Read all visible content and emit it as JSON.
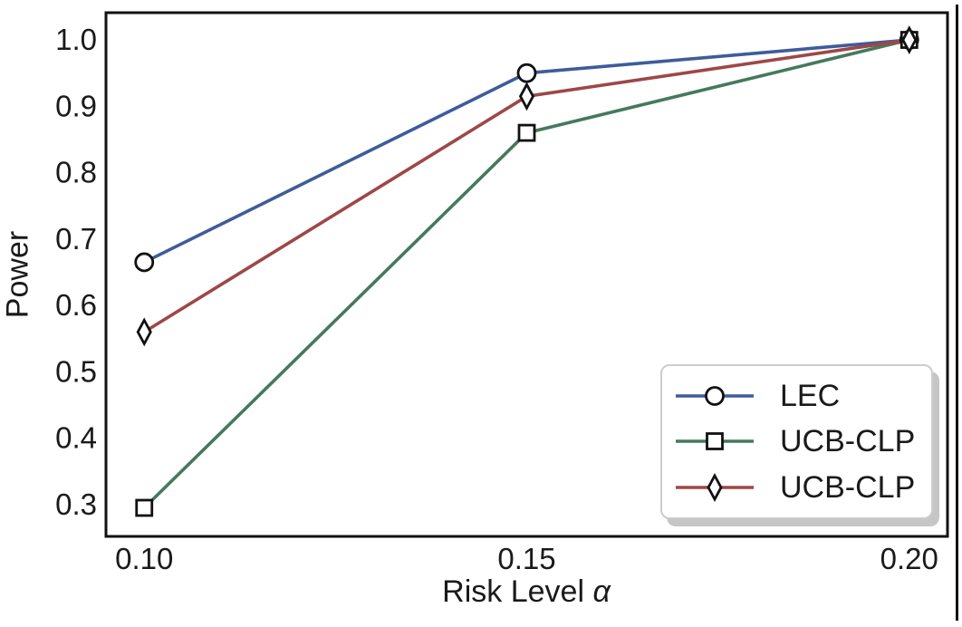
{
  "figure": {
    "background": "#ffffff",
    "text_color": "#1a1a1a",
    "spine_color": "#111111"
  },
  "chart_data": {
    "type": "line",
    "title": "",
    "xlabel": "Risk Level α",
    "xlabel_parts": {
      "prefix": "Risk Level ",
      "symbol": "α"
    },
    "ylabel": "Power",
    "x": [
      0.1,
      0.15,
      0.2
    ],
    "series": [
      {
        "name": "LEC",
        "color": "#3E5C9A",
        "marker": "circle",
        "values": [
          0.665,
          0.95,
          1.0
        ]
      },
      {
        "name": "UCB-CLP",
        "color": "#45795E",
        "marker": "square",
        "values": [
          0.295,
          0.86,
          1.0
        ]
      },
      {
        "name": "UCB-CLP",
        "color": "#9E4748",
        "marker": "diamond",
        "values": [
          0.56,
          0.915,
          1.0
        ]
      }
    ],
    "xlim": [
      0.095,
      0.205
    ],
    "ylim": [
      0.252,
      1.041
    ],
    "xticks": {
      "values": [
        0.1,
        0.15,
        0.2
      ],
      "labels": [
        "0.10",
        "0.15",
        "0.20"
      ]
    },
    "yticks": {
      "values": [
        0.3,
        0.4,
        0.5,
        0.6,
        0.7,
        0.8,
        0.9,
        1.0
      ],
      "labels": [
        "0.3",
        "0.4",
        "0.5",
        "0.6",
        "0.7",
        "0.8",
        "0.9",
        "1.0"
      ]
    },
    "grid": false,
    "legend": {
      "position": "lower right",
      "entries": [
        "LEC",
        "UCB-CLP",
        "UCB-CLP"
      ]
    },
    "marker_face": "#ffffff",
    "marker_edge": "#111111"
  }
}
